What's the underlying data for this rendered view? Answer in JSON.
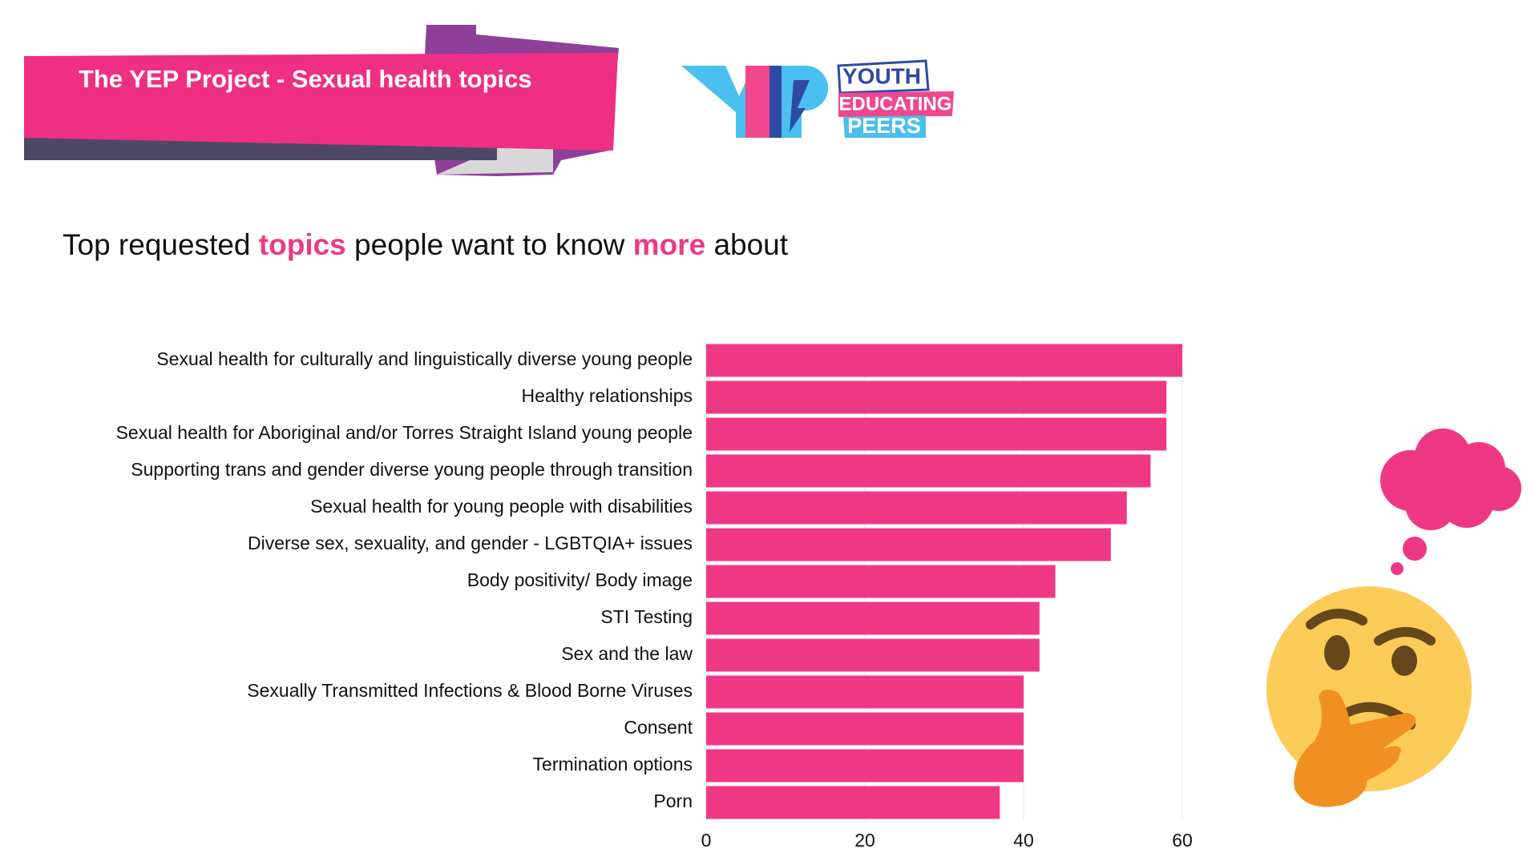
{
  "banner_title": "The YEP Project - Sexual health topics",
  "logo": {
    "lines": [
      "YOUTH",
      "EDUCATING",
      "PEERS"
    ]
  },
  "subtitle": {
    "parts": [
      "Top requested",
      "topics",
      "people want to know",
      "more",
      "about"
    ],
    "highlight": [
      1,
      3
    ],
    "highlight_color": "#ec3a86"
  },
  "chart_data": {
    "type": "bar",
    "orientation": "horizontal",
    "categories": [
      "Sexual health for culturally and linguistically diverse young people",
      "Healthy relationships",
      "Sexual health for Aboriginal and/or Torres Straight Island young people",
      "Supporting trans and gender diverse young people through transition",
      "Sexual health for young people with disabilities",
      "Diverse sex, sexuality, and gender - LGBTQIA+ issues",
      "Body positivity/ Body image",
      "STI Testing",
      "Sex and the law",
      "Sexually Transmitted Infections & Blood Borne Viruses",
      "Consent",
      "Termination options",
      "Porn"
    ],
    "values": [
      60,
      58,
      58,
      56,
      53,
      51,
      44,
      42,
      42,
      40,
      40,
      40,
      37
    ],
    "color": "#ef3885",
    "xlim": [
      0,
      60
    ],
    "xticks": [
      0,
      20,
      40,
      60
    ],
    "grid": true
  }
}
